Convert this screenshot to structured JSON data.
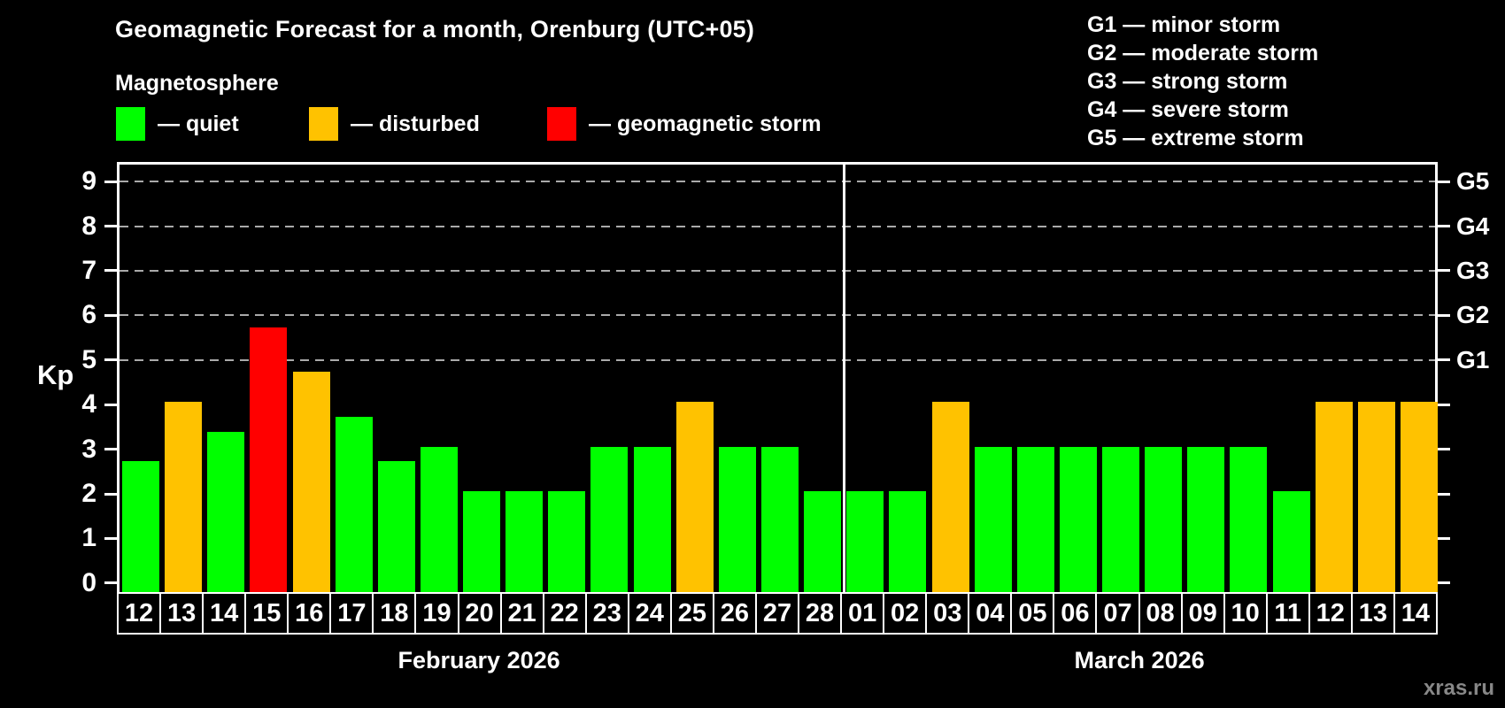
{
  "header": {
    "title": "Geomagnetic Forecast for a month, Orenburg (UTC+05)",
    "subtitle": "Magnetosphere"
  },
  "legend": {
    "items": [
      {
        "key": "quiet",
        "label": "— quiet"
      },
      {
        "key": "disturbed",
        "label": "— disturbed"
      },
      {
        "key": "storm",
        "label": "— geomagnetic storm"
      }
    ]
  },
  "g_scale_legend": {
    "lines": [
      "G1 — minor storm",
      "G2 — moderate storm",
      "G3 — strong storm",
      "G4 — severe storm",
      "G5 — extreme storm"
    ]
  },
  "watermark": "xras.ru",
  "chart_data": {
    "type": "bar",
    "title": "Geomagnetic Forecast for a month, Orenburg (UTC+05)",
    "ylabel": "Kp",
    "ylim": [
      0,
      9
    ],
    "y_ticks": [
      0,
      1,
      2,
      3,
      4,
      5,
      6,
      7,
      8,
      9
    ],
    "gridlines": [
      5,
      6,
      7,
      8,
      9
    ],
    "grid_style": "dashed horizontal gray lines at storm levels only",
    "legend_position": "top",
    "right_axis_labels": [
      {
        "value": 5,
        "label": "G1"
      },
      {
        "value": 6,
        "label": "G2"
      },
      {
        "value": 7,
        "label": "G3"
      },
      {
        "value": 8,
        "label": "G4"
      },
      {
        "value": 9,
        "label": "G5"
      }
    ],
    "status_colors": {
      "quiet": "#00FF00",
      "disturbed": "#FFC200",
      "storm": "#FF0000"
    },
    "months": [
      {
        "label": "February 2026",
        "days": 17
      },
      {
        "label": "March 2026",
        "days": 14
      }
    ],
    "bars": [
      {
        "day": "12",
        "kp": 2.67,
        "status": "quiet"
      },
      {
        "day": "13",
        "kp": 4.0,
        "status": "disturbed"
      },
      {
        "day": "14",
        "kp": 3.33,
        "status": "quiet"
      },
      {
        "day": "15",
        "kp": 5.67,
        "status": "storm"
      },
      {
        "day": "16",
        "kp": 4.67,
        "status": "disturbed"
      },
      {
        "day": "17",
        "kp": 3.67,
        "status": "quiet"
      },
      {
        "day": "18",
        "kp": 2.67,
        "status": "quiet"
      },
      {
        "day": "19",
        "kp": 3.0,
        "status": "quiet"
      },
      {
        "day": "20",
        "kp": 2.0,
        "status": "quiet"
      },
      {
        "day": "21",
        "kp": 2.0,
        "status": "quiet"
      },
      {
        "day": "22",
        "kp": 2.0,
        "status": "quiet"
      },
      {
        "day": "23",
        "kp": 3.0,
        "status": "quiet"
      },
      {
        "day": "24",
        "kp": 3.0,
        "status": "quiet"
      },
      {
        "day": "25",
        "kp": 4.0,
        "status": "disturbed"
      },
      {
        "day": "26",
        "kp": 3.0,
        "status": "quiet"
      },
      {
        "day": "27",
        "kp": 3.0,
        "status": "quiet"
      },
      {
        "day": "28",
        "kp": 2.0,
        "status": "quiet"
      },
      {
        "day": "01",
        "kp": 2.0,
        "status": "quiet"
      },
      {
        "day": "02",
        "kp": 2.0,
        "status": "quiet"
      },
      {
        "day": "03",
        "kp": 4.0,
        "status": "disturbed"
      },
      {
        "day": "04",
        "kp": 3.0,
        "status": "quiet"
      },
      {
        "day": "05",
        "kp": 3.0,
        "status": "quiet"
      },
      {
        "day": "06",
        "kp": 3.0,
        "status": "quiet"
      },
      {
        "day": "07",
        "kp": 3.0,
        "status": "quiet"
      },
      {
        "day": "08",
        "kp": 3.0,
        "status": "quiet"
      },
      {
        "day": "09",
        "kp": 3.0,
        "status": "quiet"
      },
      {
        "day": "10",
        "kp": 3.0,
        "status": "quiet"
      },
      {
        "day": "11",
        "kp": 2.0,
        "status": "quiet"
      },
      {
        "day": "12",
        "kp": 4.0,
        "status": "disturbed"
      },
      {
        "day": "13",
        "kp": 4.0,
        "status": "disturbed"
      },
      {
        "day": "14",
        "kp": 4.0,
        "status": "disturbed"
      }
    ]
  }
}
